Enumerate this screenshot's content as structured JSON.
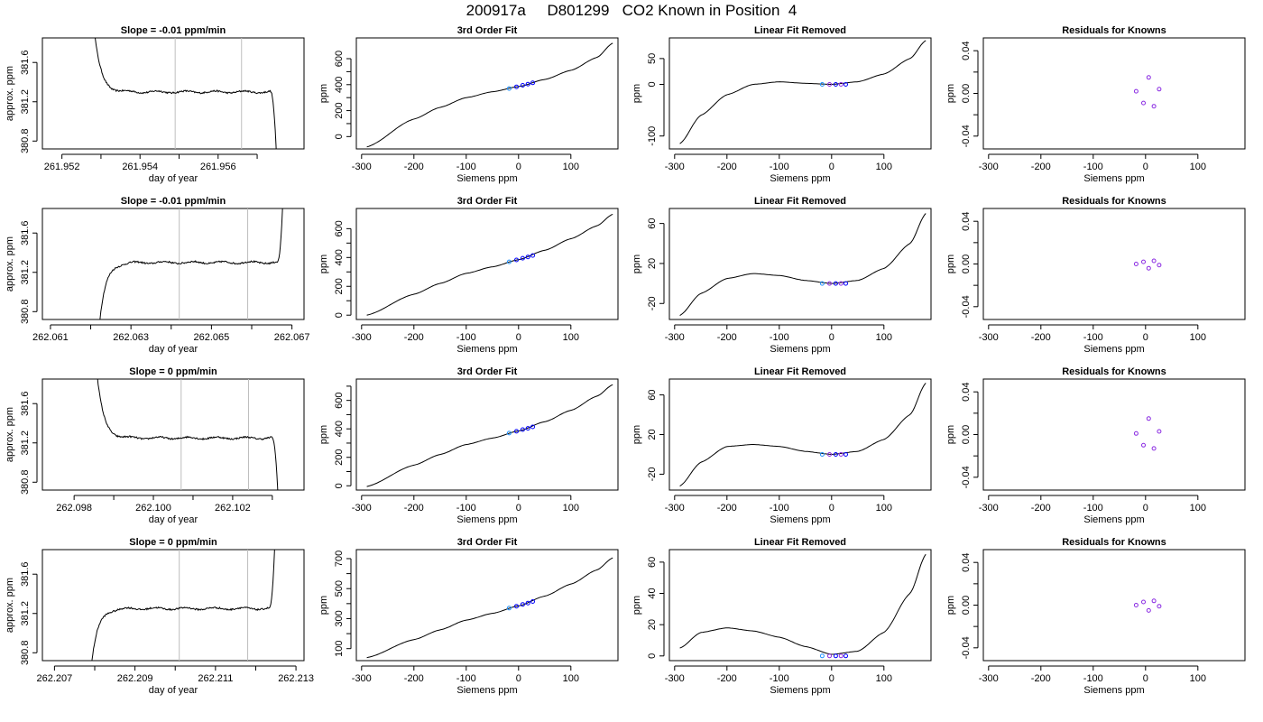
{
  "page": {
    "title": "200917a     D801299   CO2 Known in Position  4"
  },
  "colors": {
    "line": "#000000",
    "frame": "#000000",
    "guide": "#bebebe",
    "point_primary": "#0000ff",
    "point_secondary": "#1e90ff",
    "residual_point": "#8a2be2"
  },
  "chart_data": [
    {
      "type": "line",
      "row": 0,
      "col": 0,
      "title": "Slope =  -0.01  ppm/min",
      "xlabel": "day of year",
      "ylabel": "approx. ppm",
      "xlim": [
        261.9515,
        261.9582
      ],
      "ylim": [
        380.72,
        381.85
      ],
      "xticks": [
        261.952,
        261.953,
        261.954,
        261.955,
        261.956,
        261.957
      ],
      "xtick_labels": [
        "261.952",
        "",
        "261.954",
        "",
        "261.956",
        ""
      ],
      "yticks": [
        380.8,
        381.2,
        381.6
      ],
      "ytick_labels": [
        "380.8",
        "381.2",
        "381.6"
      ],
      "vlines": [
        261.9549,
        261.9566
      ],
      "trace": {
        "x_start": 261.95275,
        "x_end": 261.9575,
        "start_level": 382.3,
        "plateau": 381.3,
        "end_y": 380.6,
        "end_shape": "drop",
        "noise": 0.008
      }
    },
    {
      "type": "line",
      "row": 0,
      "col": 1,
      "title": "3rd Order Fit",
      "xlabel": "Siemens ppm",
      "ylabel": "ppm",
      "xlim": [
        -310,
        190
      ],
      "ylim": [
        -95,
        760
      ],
      "xticks": [
        -300,
        -200,
        -100,
        0,
        100
      ],
      "xtick_labels": [
        "-300",
        "-200",
        "-100",
        "0",
        "100"
      ],
      "yticks": [
        0,
        200,
        400,
        600
      ],
      "ytick_labels": [
        "0",
        "",
        "200",
        "",
        "400",
        "",
        "600"
      ],
      "yticks_all": [
        0,
        100,
        200,
        300,
        400,
        500,
        600
      ],
      "curve": {
        "x": [
          -290,
          -200,
          -150,
          -100,
          -50,
          0,
          50,
          100,
          150,
          180
        ],
        "y": [
          -80,
          135,
          225,
          300,
          345,
          385,
          440,
          510,
          610,
          720
        ]
      },
      "points": {
        "x": [
          -18,
          -4,
          8,
          18,
          27
        ],
        "y": [
          370,
          383,
          395,
          404,
          414
        ]
      }
    },
    {
      "type": "line",
      "row": 0,
      "col": 2,
      "title": "Linear Fit Removed",
      "xlabel": "Siemens ppm",
      "ylabel": "ppm",
      "xlim": [
        -310,
        190
      ],
      "ylim": [
        -125,
        90
      ],
      "xticks": [
        -300,
        -200,
        -100,
        0,
        100
      ],
      "xtick_labels": [
        "-300",
        "-200",
        "-100",
        "0",
        "100"
      ],
      "yticks": [
        -100,
        0,
        50
      ],
      "ytick_labels": [
        "-100",
        "0",
        "50"
      ],
      "curve": {
        "x": [
          -290,
          -250,
          -200,
          -150,
          -100,
          -50,
          0,
          50,
          100,
          150,
          180
        ],
        "y": [
          -115,
          -60,
          -20,
          0,
          5,
          2,
          0,
          5,
          20,
          50,
          85
        ]
      },
      "points": {
        "x": [
          -18,
          -4,
          8,
          18,
          27
        ],
        "y": [
          0,
          0,
          0,
          0,
          0
        ]
      }
    },
    {
      "type": "scatter",
      "row": 0,
      "col": 3,
      "title": "Residuals for Knowns",
      "xlabel": "Siemens ppm",
      "ylabel": "ppm",
      "xlim": [
        -310,
        190
      ],
      "ylim": [
        -0.052,
        0.052
      ],
      "xticks": [
        -300,
        -200,
        -100,
        0,
        100
      ],
      "xtick_labels": [
        "-300",
        "-200",
        "-100",
        "0",
        "100"
      ],
      "yticks": [
        -0.04,
        0.0,
        0.04
      ],
      "ytick_labels": [
        "-0.04",
        "0.00",
        "0.04"
      ],
      "yticks_all": [
        -0.04,
        -0.02,
        0.0,
        0.02,
        0.04
      ],
      "points": {
        "x": [
          -18,
          -4,
          6,
          16,
          26
        ],
        "y": [
          0.002,
          -0.009,
          0.015,
          -0.012,
          0.004
        ]
      }
    },
    {
      "type": "line",
      "row": 1,
      "col": 0,
      "title": "Slope =  -0.01  ppm/min",
      "xlabel": "day of year",
      "ylabel": "approx. ppm",
      "xlim": [
        262.0608,
        262.0673
      ],
      "ylim": [
        380.72,
        381.85
      ],
      "xticks": [
        262.061,
        262.062,
        262.063,
        262.064,
        262.065,
        262.066,
        262.067
      ],
      "xtick_labels": [
        "262.061",
        "",
        "262.063",
        "",
        "262.065",
        "",
        "262.067"
      ],
      "yticks": [
        380.8,
        381.2,
        381.6
      ],
      "ytick_labels": [
        "380.8",
        "381.2",
        "381.6"
      ],
      "vlines": [
        262.0642,
        262.0659
      ],
      "trace": {
        "x_start": 262.0622,
        "x_end": 262.0668,
        "start_level": 380.6,
        "plateau": 381.3,
        "end_y": 382.2,
        "end_shape": "rise",
        "noise": 0.008
      }
    },
    {
      "type": "line",
      "row": 1,
      "col": 1,
      "title": "3rd Order Fit",
      "xlabel": "Siemens ppm",
      "ylabel": "ppm",
      "xlim": [
        -310,
        190
      ],
      "ylim": [
        -30,
        740
      ],
      "xticks": [
        -300,
        -200,
        -100,
        0,
        100
      ],
      "xtick_labels": [
        "-300",
        "-200",
        "-100",
        "0",
        "100"
      ],
      "yticks": [
        0,
        200,
        400,
        600
      ],
      "ytick_labels": [
        "0",
        "200",
        "400",
        "600"
      ],
      "yticks_all": [
        0,
        100,
        200,
        300,
        400,
        500,
        600
      ],
      "curve": {
        "x": [
          -290,
          -200,
          -150,
          -100,
          -50,
          0,
          50,
          100,
          150,
          180
        ],
        "y": [
          0,
          145,
          220,
          290,
          335,
          385,
          450,
          530,
          620,
          700
        ]
      },
      "points": {
        "x": [
          -18,
          -4,
          8,
          18,
          27
        ],
        "y": [
          370,
          383,
          395,
          404,
          414
        ]
      }
    },
    {
      "type": "line",
      "row": 1,
      "col": 2,
      "title": "Linear Fit Removed",
      "xlabel": "Siemens ppm",
      "ylabel": "ppm",
      "xlim": [
        -310,
        190
      ],
      "ylim": [
        -36,
        75
      ],
      "xticks": [
        -300,
        -200,
        -100,
        0,
        100
      ],
      "xtick_labels": [
        "-300",
        "-200",
        "-100",
        "0",
        "100"
      ],
      "yticks": [
        -20,
        20,
        60
      ],
      "ytick_labels": [
        "-20",
        "20",
        "60"
      ],
      "curve": {
        "x": [
          -290,
          -250,
          -200,
          -150,
          -100,
          -50,
          0,
          50,
          100,
          150,
          180
        ],
        "y": [
          -32,
          -10,
          5,
          10,
          8,
          3,
          0,
          3,
          15,
          40,
          70
        ]
      },
      "points": {
        "x": [
          -18,
          -4,
          8,
          18,
          27
        ],
        "y": [
          0,
          0,
          0,
          0,
          0
        ]
      }
    },
    {
      "type": "scatter",
      "row": 1,
      "col": 3,
      "title": "Residuals for Knowns",
      "xlabel": "Siemens ppm",
      "ylabel": "ppm",
      "xlim": [
        -310,
        190
      ],
      "ylim": [
        -0.052,
        0.052
      ],
      "xticks": [
        -300,
        -200,
        -100,
        0,
        100
      ],
      "xtick_labels": [
        "-300",
        "-200",
        "-100",
        "0",
        "100"
      ],
      "yticks": [
        -0.04,
        0.0,
        0.04
      ],
      "ytick_labels": [
        "-0.04",
        "0.00",
        "0.04"
      ],
      "yticks_all": [
        -0.04,
        -0.02,
        0.0,
        0.02,
        0.04
      ],
      "points": {
        "x": [
          -18,
          -4,
          6,
          16,
          26
        ],
        "y": [
          0.0,
          0.002,
          -0.004,
          0.003,
          -0.001
        ]
      }
    },
    {
      "type": "line",
      "row": 2,
      "col": 0,
      "title": "Slope =  0  ppm/min",
      "xlabel": "day of year",
      "ylabel": "approx. ppm",
      "xlim": [
        262.0972,
        262.1038
      ],
      "ylim": [
        380.72,
        381.85
      ],
      "xticks": [
        262.098,
        262.099,
        262.1,
        262.101,
        262.102,
        262.103
      ],
      "xtick_labels": [
        "262.098",
        "",
        "262.100",
        "",
        "262.102",
        ""
      ],
      "yticks": [
        380.8,
        381.2,
        381.6
      ],
      "ytick_labels": [
        "380.8",
        "381.2",
        "381.6"
      ],
      "vlines": [
        262.1007,
        262.1024
      ],
      "trace": {
        "x_start": 262.0985,
        "x_end": 262.10315,
        "start_level": 382.3,
        "plateau": 381.25,
        "end_y": 380.6,
        "end_shape": "drop",
        "noise": 0.008
      }
    },
    {
      "type": "line",
      "row": 2,
      "col": 1,
      "title": "3rd Order Fit",
      "xlabel": "Siemens ppm",
      "ylabel": "ppm",
      "xlim": [
        -310,
        190
      ],
      "ylim": [
        -30,
        750
      ],
      "xticks": [
        -300,
        -200,
        -100,
        0,
        100
      ],
      "xtick_labels": [
        "-300",
        "-200",
        "-100",
        "0",
        "100"
      ],
      "yticks": [
        0,
        200,
        400,
        600
      ],
      "ytick_labels": [
        "0",
        "200",
        "400",
        "600"
      ],
      "yticks_all": [
        0,
        100,
        200,
        300,
        400,
        500,
        600,
        700
      ],
      "curve": {
        "x": [
          -290,
          -200,
          -150,
          -100,
          -50,
          0,
          50,
          100,
          150,
          180
        ],
        "y": [
          -5,
          145,
          220,
          290,
          335,
          385,
          450,
          530,
          630,
          710
        ]
      },
      "points": {
        "x": [
          -18,
          -4,
          8,
          18,
          27
        ],
        "y": [
          370,
          383,
          395,
          404,
          414
        ]
      }
    },
    {
      "type": "line",
      "row": 2,
      "col": 2,
      "title": "Linear Fit Removed",
      "xlabel": "Siemens ppm",
      "ylabel": "ppm",
      "xlim": [
        -310,
        190
      ],
      "ylim": [
        -36,
        76
      ],
      "xticks": [
        -300,
        -200,
        -100,
        0,
        100
      ],
      "xtick_labels": [
        "-300",
        "-200",
        "-100",
        "0",
        "100"
      ],
      "yticks": [
        -20,
        20,
        60
      ],
      "ytick_labels": [
        "-20",
        "20",
        "60"
      ],
      "curve": {
        "x": [
          -290,
          -250,
          -200,
          -150,
          -100,
          -50,
          0,
          50,
          100,
          150,
          180
        ],
        "y": [
          -32,
          -8,
          8,
          10,
          8,
          3,
          0,
          3,
          15,
          40,
          72
        ]
      },
      "points": {
        "x": [
          -18,
          -4,
          8,
          18,
          27
        ],
        "y": [
          0,
          0,
          0,
          0,
          0
        ]
      }
    },
    {
      "type": "scatter",
      "row": 2,
      "col": 3,
      "title": "Residuals for Knowns",
      "xlabel": "Siemens ppm",
      "ylabel": "ppm",
      "xlim": [
        -310,
        190
      ],
      "ylim": [
        -0.052,
        0.052
      ],
      "xticks": [
        -300,
        -200,
        -100,
        0,
        100
      ],
      "xtick_labels": [
        "-300",
        "-200",
        "-100",
        "0",
        "100"
      ],
      "yticks": [
        -0.04,
        0.0,
        0.04
      ],
      "ytick_labels": [
        "-0.04",
        "0.00",
        "0.04"
      ],
      "yticks_all": [
        -0.04,
        -0.02,
        0.0,
        0.02,
        0.04
      ],
      "points": {
        "x": [
          -18,
          -4,
          6,
          16,
          26
        ],
        "y": [
          0.001,
          -0.01,
          0.015,
          -0.013,
          0.003
        ]
      }
    },
    {
      "type": "line",
      "row": 3,
      "col": 0,
      "title": "Slope =  0  ppm/min",
      "xlabel": "day of year",
      "ylabel": "approx. ppm",
      "xlim": [
        262.2067,
        262.2132
      ],
      "ylim": [
        380.72,
        381.85
      ],
      "xticks": [
        262.207,
        262.208,
        262.209,
        262.21,
        262.211,
        262.212,
        262.213
      ],
      "xtick_labels": [
        "262.207",
        "",
        "262.209",
        "",
        "262.211",
        "",
        "262.213"
      ],
      "yticks": [
        380.8,
        381.2,
        381.6
      ],
      "ytick_labels": [
        "380.8",
        "381.2",
        "381.6"
      ],
      "vlines": [
        262.2101,
        262.2118
      ],
      "trace": {
        "x_start": 262.2079,
        "x_end": 262.2125,
        "start_level": 380.6,
        "plateau": 381.25,
        "end_y": 382.2,
        "end_shape": "rise",
        "noise": 0.008
      }
    },
    {
      "type": "line",
      "row": 3,
      "col": 1,
      "title": "3rd Order Fit",
      "xlabel": "Siemens ppm",
      "ylabel": "ppm",
      "xlim": [
        -310,
        190
      ],
      "ylim": [
        20,
        760
      ],
      "xticks": [
        -300,
        -200,
        -100,
        0,
        100
      ],
      "xtick_labels": [
        "-300",
        "-200",
        "-100",
        "0",
        "100"
      ],
      "yticks": [
        100,
        300,
        500,
        700
      ],
      "ytick_labels": [
        "100",
        "300",
        "500",
        "700"
      ],
      "yticks_all": [
        100,
        200,
        300,
        400,
        500,
        600,
        700
      ],
      "curve": {
        "x": [
          -290,
          -200,
          -150,
          -100,
          -50,
          0,
          50,
          100,
          150,
          180
        ],
        "y": [
          40,
          160,
          225,
          290,
          335,
          385,
          450,
          530,
          625,
          705
        ]
      },
      "points": {
        "x": [
          -18,
          -4,
          8,
          18,
          27
        ],
        "y": [
          370,
          383,
          395,
          404,
          414
        ]
      }
    },
    {
      "type": "line",
      "row": 3,
      "col": 2,
      "title": "Linear Fit Removed",
      "xlabel": "Siemens ppm",
      "ylabel": "ppm",
      "xlim": [
        -310,
        190
      ],
      "ylim": [
        -3,
        68
      ],
      "xticks": [
        -300,
        -200,
        -100,
        0,
        100
      ],
      "xtick_labels": [
        "-300",
        "-200",
        "-100",
        "0",
        "100"
      ],
      "yticks": [
        0,
        20,
        40,
        60
      ],
      "ytick_labels": [
        "0",
        "20",
        "40",
        "60"
      ],
      "curve": {
        "x": [
          -290,
          -250,
          -200,
          -150,
          -100,
          -50,
          0,
          50,
          100,
          150,
          180
        ],
        "y": [
          5,
          15,
          18,
          16,
          12,
          6,
          1,
          3,
          15,
          40,
          65
        ]
      },
      "points": {
        "x": [
          -18,
          -4,
          8,
          18,
          27
        ],
        "y": [
          0,
          0,
          0,
          0,
          0
        ]
      }
    },
    {
      "type": "scatter",
      "row": 3,
      "col": 3,
      "title": "Residuals for Knowns",
      "xlabel": "Siemens ppm",
      "ylabel": "ppm",
      "xlim": [
        -310,
        190
      ],
      "ylim": [
        -0.052,
        0.052
      ],
      "xticks": [
        -300,
        -200,
        -100,
        0,
        100
      ],
      "xtick_labels": [
        "-300",
        "-200",
        "-100",
        "0",
        "100"
      ],
      "yticks": [
        -0.04,
        0.0,
        0.04
      ],
      "ytick_labels": [
        "-0.04",
        "0.00",
        "0.04"
      ],
      "yticks_all": [
        -0.04,
        -0.02,
        0.0,
        0.02,
        0.04
      ],
      "points": {
        "x": [
          -18,
          -4,
          6,
          16,
          26
        ],
        "y": [
          0.0,
          0.003,
          -0.005,
          0.004,
          -0.001
        ]
      }
    }
  ]
}
